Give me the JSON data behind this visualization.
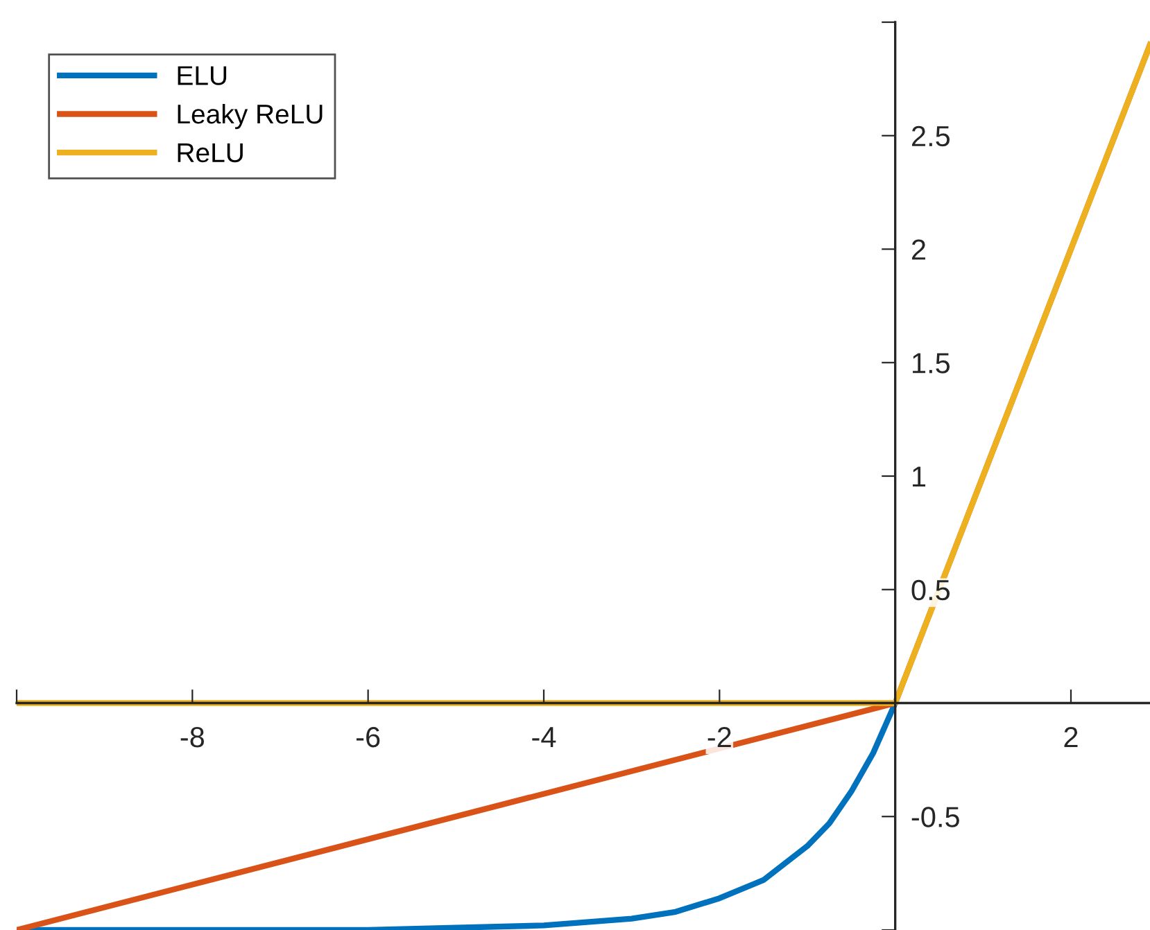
{
  "chart_data": {
    "type": "line",
    "xlim": [
      -10,
      2.9
    ],
    "ylim": [
      -1,
      3
    ],
    "xticks": [
      {
        "value": -10,
        "label": null
      },
      -8,
      -6,
      -4,
      -2,
      {
        "value": 0,
        "label": null
      },
      2
    ],
    "yticks": [
      {
        "value": -1,
        "label": null
      },
      -0.5,
      {
        "value": 0,
        "label": null
      },
      0.5,
      1,
      1.5,
      2,
      2.5,
      {
        "value": 3,
        "label": null
      }
    ],
    "legend": "top left",
    "grid": false,
    "line_style": "solid",
    "marker": "none",
    "series": [
      {
        "name": "ELU",
        "color": "#0072bd",
        "x": [
          -10,
          -6,
          -4,
          -3,
          -2.5,
          -2,
          -1.5,
          -1,
          -0.75,
          -0.5,
          -0.25,
          0
        ],
        "values": [
          -1,
          -1,
          -0.98,
          -0.95,
          -0.92,
          -0.86,
          -0.78,
          -0.63,
          -0.53,
          -0.39,
          -0.22,
          0
        ]
      },
      {
        "name": "Leaky ReLU",
        "color": "#d95319",
        "x": [
          -10,
          0,
          2.9
        ],
        "values": [
          -1,
          0,
          2.9
        ]
      },
      {
        "name": "ReLU",
        "color": "#edb120",
        "x": [
          -10,
          0,
          2.9
        ],
        "values": [
          0,
          0,
          2.9
        ]
      }
    ]
  }
}
